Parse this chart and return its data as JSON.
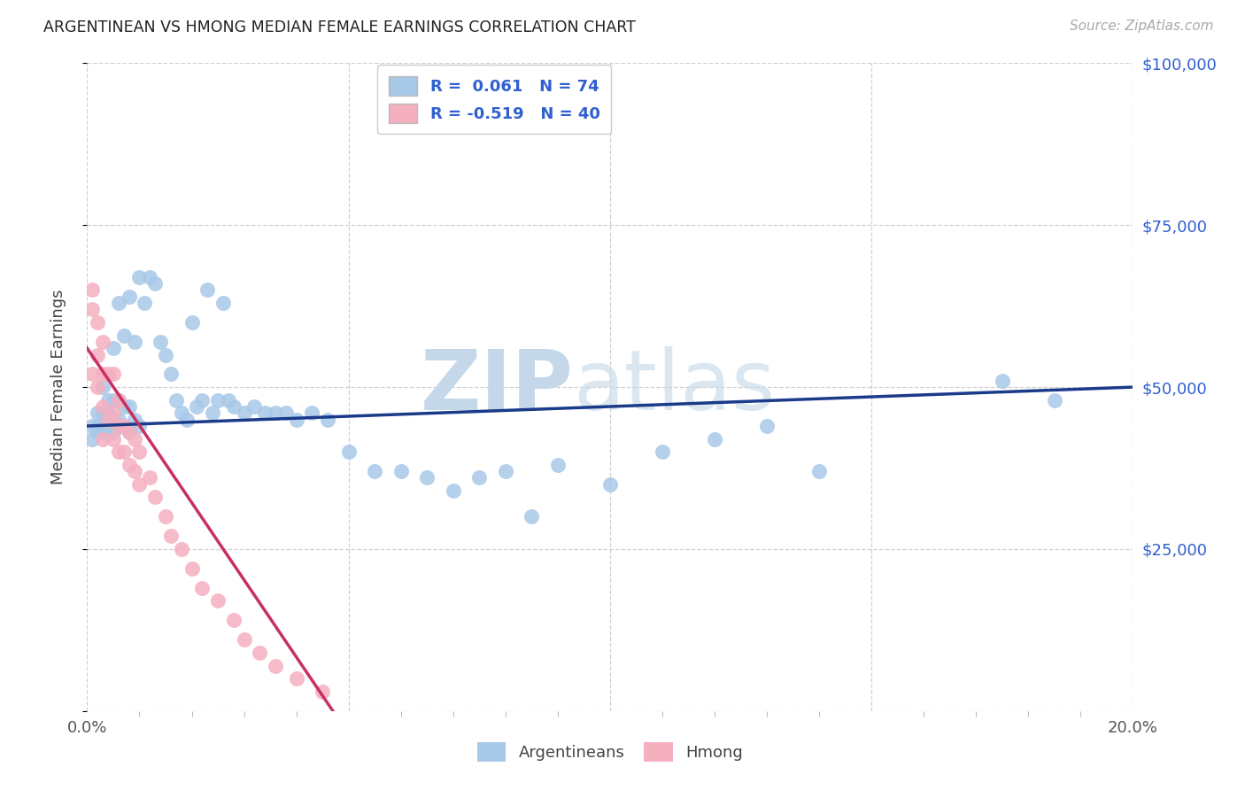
{
  "title": "ARGENTINEAN VS HMONG MEDIAN FEMALE EARNINGS CORRELATION CHART",
  "source": "Source: ZipAtlas.com",
  "ylabel": "Median Female Earnings",
  "xlim": [
    0.0,
    0.2
  ],
  "ylim": [
    0,
    100000
  ],
  "xticks_major": [
    0.0,
    0.05,
    0.1,
    0.15,
    0.2
  ],
  "xtick_labels": [
    "0.0%",
    "",
    "",
    "",
    "20.0%"
  ],
  "yticks": [
    0,
    25000,
    50000,
    75000,
    100000
  ],
  "right_ytick_labels": [
    "",
    "$25,000",
    "$50,000",
    "$75,000",
    "$100,000"
  ],
  "argentinean_R": "0.061",
  "argentinean_N": "74",
  "hmong_R": "-0.519",
  "hmong_N": "40",
  "argentinean_color": "#a8c8e8",
  "hmong_color": "#f5b0c0",
  "argentinean_line_color": "#1a3a8a",
  "hmong_line_color": "#c83060",
  "background_color": "#ffffff",
  "grid_color": "#d0d0d0",
  "title_color": "#222222",
  "right_label_color": "#3060d0",
  "series1_label": "Argentineans",
  "series2_label": "Hmong",
  "argentinean_x": [
    0.001,
    0.001,
    0.002,
    0.002,
    0.002,
    0.003,
    0.003,
    0.003,
    0.003,
    0.004,
    0.004,
    0.004,
    0.004,
    0.005,
    0.005,
    0.005,
    0.005,
    0.005,
    0.006,
    0.006,
    0.006,
    0.006,
    0.007,
    0.007,
    0.007,
    0.008,
    0.008,
    0.008,
    0.009,
    0.009,
    0.01,
    0.01,
    0.011,
    0.012,
    0.013,
    0.014,
    0.015,
    0.016,
    0.017,
    0.018,
    0.019,
    0.02,
    0.021,
    0.022,
    0.023,
    0.024,
    0.025,
    0.026,
    0.027,
    0.028,
    0.03,
    0.032,
    0.034,
    0.036,
    0.038,
    0.04,
    0.043,
    0.046,
    0.05,
    0.055,
    0.06,
    0.065,
    0.07,
    0.075,
    0.08,
    0.085,
    0.09,
    0.1,
    0.11,
    0.12,
    0.13,
    0.14,
    0.175,
    0.185
  ],
  "argentinean_y": [
    44000,
    42000,
    46000,
    44000,
    43000,
    50000,
    46000,
    44000,
    43000,
    48000,
    46000,
    44000,
    43000,
    56000,
    48000,
    45000,
    44000,
    43000,
    63000,
    48000,
    45000,
    44000,
    58000,
    47000,
    44000,
    64000,
    47000,
    43000,
    57000,
    45000,
    67000,
    44000,
    63000,
    67000,
    66000,
    57000,
    55000,
    52000,
    48000,
    46000,
    45000,
    60000,
    47000,
    48000,
    65000,
    46000,
    48000,
    63000,
    48000,
    47000,
    46000,
    47000,
    46000,
    46000,
    46000,
    45000,
    46000,
    45000,
    40000,
    37000,
    37000,
    36000,
    34000,
    36000,
    37000,
    30000,
    38000,
    35000,
    40000,
    42000,
    44000,
    37000,
    51000,
    48000
  ],
  "hmong_x": [
    0.001,
    0.001,
    0.001,
    0.002,
    0.002,
    0.002,
    0.003,
    0.003,
    0.003,
    0.003,
    0.004,
    0.004,
    0.005,
    0.005,
    0.005,
    0.006,
    0.006,
    0.006,
    0.007,
    0.007,
    0.008,
    0.008,
    0.009,
    0.009,
    0.01,
    0.01,
    0.012,
    0.013,
    0.015,
    0.016,
    0.018,
    0.02,
    0.022,
    0.025,
    0.028,
    0.03,
    0.033,
    0.036,
    0.04,
    0.045
  ],
  "hmong_y": [
    65000,
    62000,
    52000,
    60000,
    55000,
    50000,
    57000,
    52000,
    47000,
    42000,
    52000,
    45000,
    52000,
    46000,
    42000,
    48000,
    44000,
    40000,
    44000,
    40000,
    43000,
    38000,
    42000,
    37000,
    40000,
    35000,
    36000,
    33000,
    30000,
    27000,
    25000,
    22000,
    19000,
    17000,
    14000,
    11000,
    9000,
    7000,
    5000,
    3000
  ],
  "hmong_trend_x": [
    0.0,
    0.047
  ],
  "hmong_trend_y": [
    56000,
    0
  ],
  "arg_trend_x": [
    0.0,
    0.2
  ],
  "arg_trend_y": [
    44000,
    50000
  ]
}
